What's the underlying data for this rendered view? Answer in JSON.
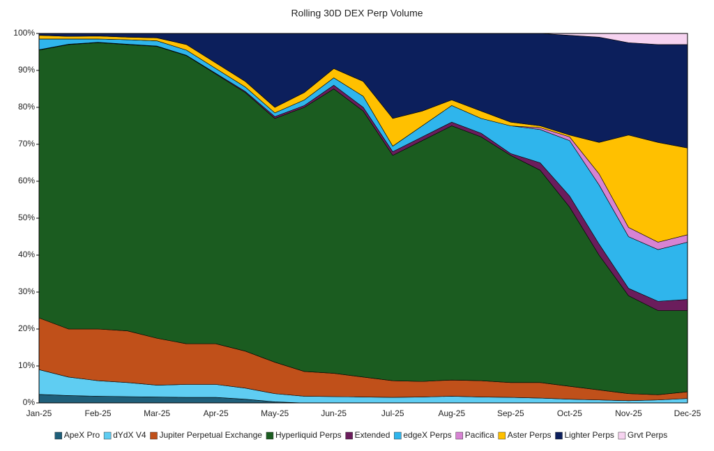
{
  "chart_data": {
    "type": "stacked_area",
    "title": "Rolling 30D DEX Perp Volume",
    "categories": [
      "Jan-25",
      null,
      "Feb-25",
      null,
      "Mar-25",
      null,
      "Apr-25",
      null,
      "May-25",
      null,
      "Jun-25",
      null,
      "Jul-25",
      null,
      "Aug-25",
      null,
      "Sep-25",
      null,
      "Oct-25",
      null,
      "Nov-25",
      null,
      "Dec-25"
    ],
    "ylim": [
      0,
      100
    ],
    "yticks": [
      {
        "value": 0,
        "label": "0%"
      },
      {
        "value": 10,
        "label": "10%"
      },
      {
        "value": 20,
        "label": "20%"
      },
      {
        "value": 30,
        "label": "30%"
      },
      {
        "value": 40,
        "label": "40%"
      },
      {
        "value": 50,
        "label": "50%"
      },
      {
        "value": 60,
        "label": "60%"
      },
      {
        "value": 70,
        "label": "70%"
      },
      {
        "value": 80,
        "label": "80%"
      },
      {
        "value": 90,
        "label": "90%"
      },
      {
        "value": 100,
        "label": "100%"
      }
    ],
    "legend": "bottom",
    "series": [
      {
        "name": "ApeX Pro",
        "color": "#1f5f7a",
        "values": [
          2.3,
          2.0,
          1.8,
          1.7,
          1.6,
          1.5,
          1.5,
          1.0,
          0.3,
          0,
          0,
          0,
          0,
          0,
          0,
          0,
          0,
          0,
          0,
          0,
          0,
          0,
          0
        ]
      },
      {
        "name": "dYdX V4",
        "color": "#5fcdf2",
        "values": [
          6.7,
          5.0,
          4.2,
          3.8,
          3.2,
          3.5,
          3.5,
          3.0,
          2.2,
          1.8,
          1.7,
          1.6,
          1.5,
          1.6,
          1.8,
          1.6,
          1.5,
          1.3,
          1.0,
          0.8,
          0.6,
          0.8,
          1.2
        ]
      },
      {
        "name": "Jupiter Perpetual Exchange",
        "color": "#c0501a",
        "values": [
          14,
          13,
          14,
          14,
          12.7,
          11,
          11,
          10,
          8.5,
          6.7,
          6.3,
          5.4,
          4.5,
          4.2,
          4.4,
          4.4,
          4.0,
          4.2,
          3.5,
          2.7,
          1.9,
          1.4,
          1.8
        ]
      },
      {
        "name": "Hyperliquid Perps",
        "color": "#1b5c20",
        "values": [
          72.5,
          77,
          77.5,
          77.5,
          79,
          78,
          73,
          70,
          66,
          71.5,
          77,
          72,
          61,
          65.2,
          68.8,
          66,
          61.5,
          57.5,
          48.5,
          36.5,
          26.5,
          22.8,
          22
        ]
      },
      {
        "name": "Extended",
        "color": "#6b1d5c",
        "values": [
          0.1,
          0.1,
          0.1,
          0.1,
          0.1,
          0.1,
          0.2,
          0.3,
          0.5,
          0.5,
          1.0,
          1.0,
          1.0,
          1.0,
          1.0,
          1.0,
          0.5,
          2.0,
          3.0,
          3.0,
          2.0,
          2.5,
          3.0
        ]
      },
      {
        "name": "edgeX Perps",
        "color": "#2fb5ec",
        "values": [
          2.9,
          1.4,
          0.9,
          1.2,
          1.4,
          1.4,
          1.3,
          1.2,
          1.0,
          1.5,
          2.0,
          3.0,
          1.5,
          3.0,
          4.5,
          4.0,
          7.5,
          9.0,
          15,
          16,
          14,
          14,
          15.5
        ]
      },
      {
        "name": "Pacifica",
        "color": "#d783d3",
        "values": [
          0,
          0,
          0,
          0,
          0,
          0,
          0,
          0,
          0,
          0,
          0,
          0,
          0,
          0,
          0,
          0,
          0,
          0.5,
          1.0,
          3.0,
          2.5,
          2.0,
          2.0
        ]
      },
      {
        "name": "Aster Perps",
        "color": "#ffc000",
        "values": [
          1.0,
          0.7,
          0.8,
          0.7,
          0.8,
          1.5,
          1.5,
          1.5,
          1.5,
          2.0,
          2.5,
          4.0,
          7.5,
          4.0,
          1.5,
          2.0,
          1.0,
          0.5,
          0.5,
          8.5,
          25,
          27,
          23.5
        ]
      },
      {
        "name": "Lighter Perps",
        "color": "#0c1f5c",
        "values": [
          0.5,
          0.8,
          0.7,
          1.0,
          1.2,
          3.0,
          8.0,
          13,
          20,
          16,
          9.5,
          13,
          23,
          21,
          18,
          21,
          24,
          25,
          27,
          28.5,
          25,
          26.5,
          28
        ]
      },
      {
        "name": "Grvt Perps",
        "color": "#f6d3f0",
        "values": [
          0,
          0,
          0,
          0,
          0,
          0,
          0,
          0,
          0,
          0,
          0,
          0,
          0,
          0,
          0,
          0,
          0,
          0,
          0.5,
          1.0,
          2.5,
          3.0,
          3.0
        ]
      }
    ]
  }
}
